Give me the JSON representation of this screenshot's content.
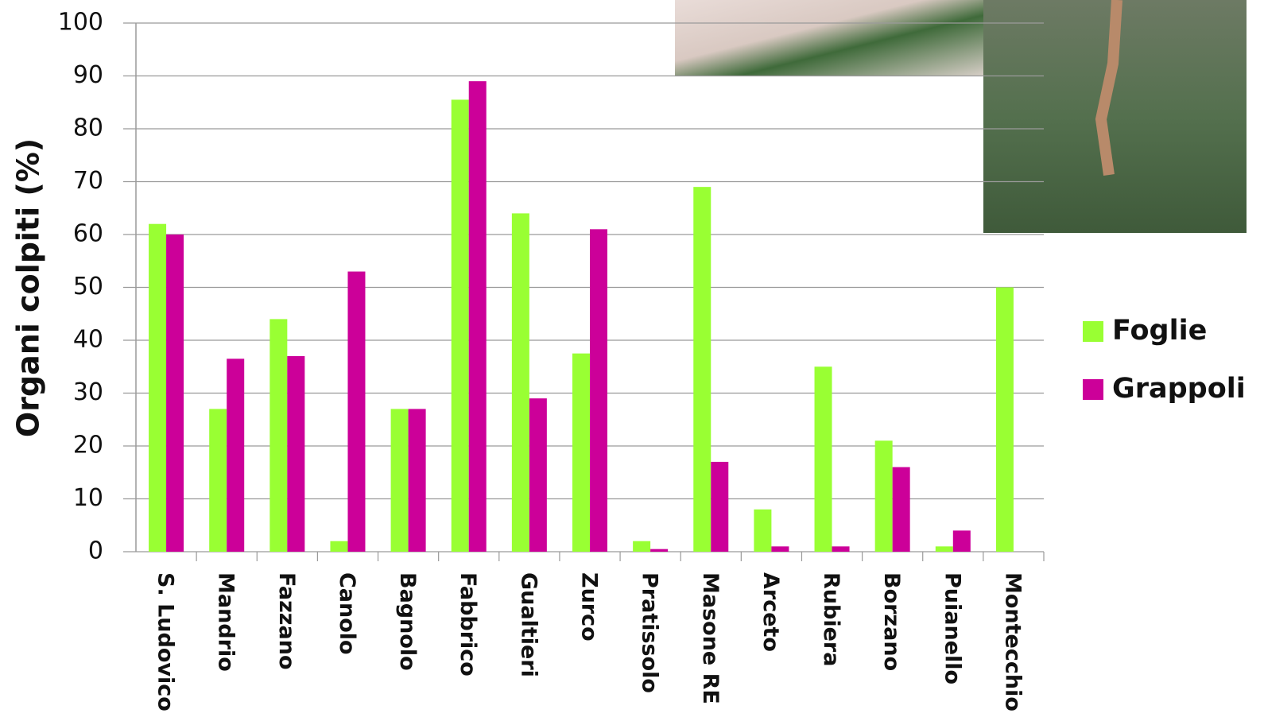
{
  "chart_data": {
    "type": "bar",
    "y_label": "Organi colpiti (%)",
    "categories": [
      "S. Ludovico",
      "Mandrio",
      "Fazzano",
      "Canolo",
      "Bagnolo",
      "Fabbrico",
      "Gualtieri",
      "Zurco",
      "Pratissolo",
      "Masone RE",
      "Arceto",
      "Rubiera",
      "Borzano",
      "Puianello",
      "Montecchio"
    ],
    "series": [
      {
        "name": "Foglie",
        "color": "#99ff33",
        "values": [
          62,
          27,
          44,
          2,
          27,
          85.5,
          64,
          37.5,
          2,
          69,
          8,
          35,
          21,
          1,
          50
        ]
      },
      {
        "name": "Grappoli",
        "color": "#cc0099",
        "values": [
          60,
          36.5,
          37,
          53,
          27,
          89,
          29,
          61,
          0.5,
          17,
          1,
          1,
          16,
          4,
          null
        ]
      }
    ],
    "ylim": [
      0,
      100
    ],
    "yticks": [
      0,
      10,
      20,
      30,
      40,
      50,
      60,
      70,
      80,
      90,
      100
    ],
    "grid": true,
    "legend": "right"
  }
}
